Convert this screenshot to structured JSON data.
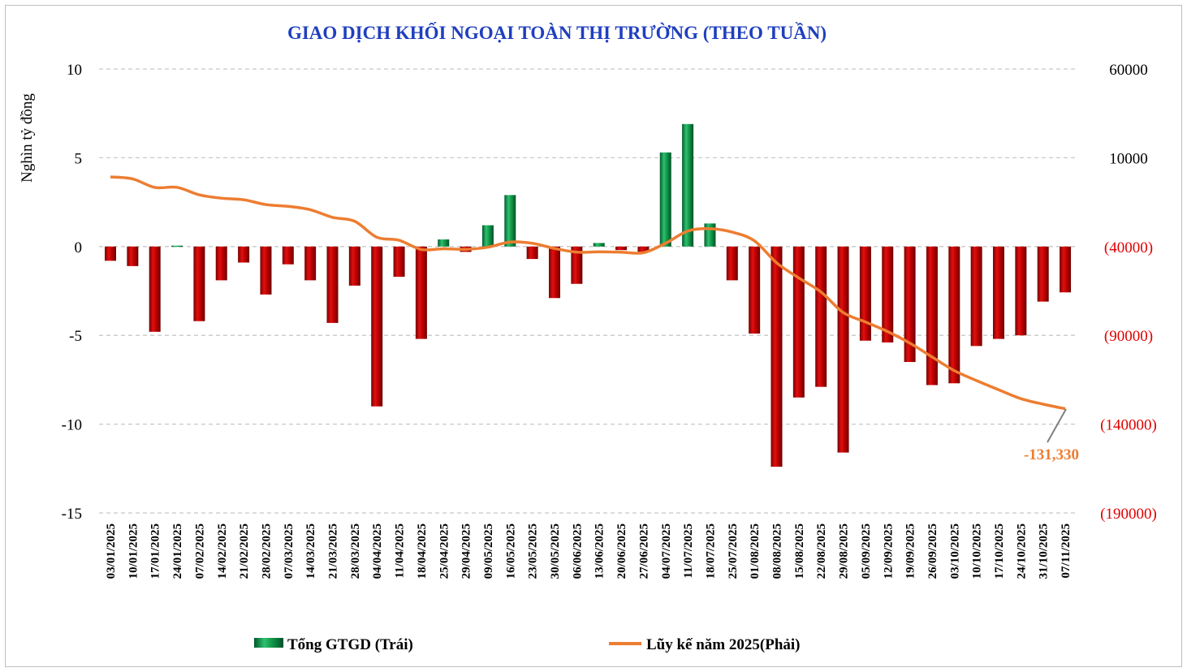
{
  "chart_data": {
    "type": "bar+line",
    "title": "GIAO DỊCH KHỐI NGOẠI TOÀN THỊ TRƯỜNG (THEO TUẦN)",
    "ylabel": "Nghìn tỷ đồng",
    "xlabel": "",
    "categories": [
      "03/01/2025",
      "10/01/2025",
      "17/01/2025",
      "24/01/2025",
      "07/02/2025",
      "14/02/2025",
      "21/02/2025",
      "28/02/2025",
      "07/03/2025",
      "14/03/2025",
      "21/03/2025",
      "28/03/2025",
      "04/04/2025",
      "11/04/2025",
      "18/04/2025",
      "25/04/2025",
      "29/04/2025",
      "09/05/2025",
      "16/05/2025",
      "23/05/2025",
      "30/05/2025",
      "06/06/2025",
      "13/06/2025",
      "20/06/2025",
      "27/06/2025",
      "04/07/2025",
      "11/07/2025",
      "18/07/2025",
      "25/07/2025",
      "01/08/2025",
      "08/08/2025",
      "15/08/2025",
      "22/08/2025",
      "29/08/2025",
      "05/09/2025",
      "12/09/2025",
      "19/09/2025",
      "26/09/2025",
      "03/10/2025",
      "10/10/2025",
      "17/10/2025",
      "24/10/2025",
      "31/10/2025",
      "07/11/2025"
    ],
    "series": [
      {
        "name": "Tổng GTGD (Trái)",
        "axis": "left",
        "type": "bar",
        "values": [
          -0.8,
          -1.1,
          -4.8,
          0.05,
          -4.2,
          -1.9,
          -0.9,
          -2.7,
          -1.0,
          -1.9,
          -4.3,
          -2.2,
          -9.0,
          -1.7,
          -5.2,
          0.4,
          -0.3,
          1.2,
          2.9,
          -0.7,
          -2.9,
          -2.1,
          0.2,
          -0.2,
          -0.3,
          5.3,
          6.9,
          1.3,
          -1.9,
          -4.9,
          -12.4,
          -8.5,
          -7.9,
          -11.6,
          -5.3,
          -5.4,
          -6.5,
          -7.8,
          -7.7,
          -5.6,
          -5.2,
          -5.0,
          -3.1,
          -2.58
        ]
      },
      {
        "name": "Lũy kế năm 2025(Phải)",
        "axis": "right",
        "type": "line",
        "values": [
          -800,
          -1900,
          -6700,
          -6650,
          -10850,
          -12750,
          -13650,
          -16350,
          -17350,
          -19250,
          -23550,
          -25750,
          -34750,
          -36450,
          -41650,
          -41250,
          -41550,
          -40350,
          -37450,
          -38150,
          -41050,
          -43150,
          -42950,
          -43150,
          -43450,
          -38150,
          -31250,
          -29950,
          -31850,
          -36750,
          -49150,
          -57650,
          -65550,
          -77150,
          -82450,
          -87850,
          -94350,
          -102150,
          -109850,
          -115450,
          -120650,
          -125650,
          -128750,
          -131330
        ]
      }
    ],
    "left_axis": {
      "ylim": [
        -15,
        10
      ],
      "ticks": [
        10,
        5,
        0,
        -5,
        -10,
        -15
      ],
      "tick_labels": [
        "10",
        "5",
        "0",
        "-5",
        "-10",
        "-15"
      ]
    },
    "right_axis": {
      "ylim": [
        -190000,
        60000
      ],
      "ticks": [
        60000,
        10000,
        -40000,
        -90000,
        -140000,
        -190000
      ],
      "tick_labels": [
        "60000",
        "10000",
        "(40000)",
        "(90000)",
        "(140000)",
        "(190000)"
      ]
    },
    "annotation": "-131,330",
    "legend_position": "bottom",
    "grid": true,
    "colors": {
      "positive": "#1a9a50",
      "negative": "#c00000",
      "line": "#ed7d31",
      "title": "#1f3fbf",
      "negative_tick": "#e00000"
    }
  }
}
